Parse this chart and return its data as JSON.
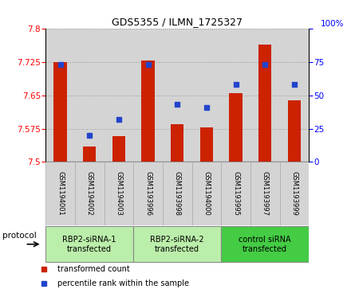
{
  "title": "GDS5355 / ILMN_1725327",
  "samples": [
    "GSM1194001",
    "GSM1194002",
    "GSM1194003",
    "GSM1193996",
    "GSM1193998",
    "GSM1194000",
    "GSM1193995",
    "GSM1193997",
    "GSM1193999"
  ],
  "bar_values": [
    7.725,
    7.535,
    7.558,
    7.728,
    7.585,
    7.578,
    7.655,
    7.765,
    7.638
  ],
  "dot_values": [
    73,
    20,
    32,
    73,
    43,
    41,
    58,
    73,
    58
  ],
  "ylim_left": [
    7.5,
    7.8
  ],
  "ylim_right": [
    0,
    100
  ],
  "yticks_left": [
    7.5,
    7.575,
    7.65,
    7.725,
    7.8
  ],
  "yticks_right": [
    0,
    25,
    50,
    75,
    100
  ],
  "bar_color": "#cc2200",
  "dot_color": "#2244cc",
  "bg_white": "#ffffff",
  "bg_grey": "#d4d4d4",
  "groups": [
    {
      "label": "RBP2-siRNA-1\ntransfected",
      "start": 0,
      "end": 2,
      "color": "#bbeeaa"
    },
    {
      "label": "RBP2-siRNA-2\ntransfected",
      "start": 3,
      "end": 5,
      "color": "#bbeeaa"
    },
    {
      "label": "control siRNA\ntransfected",
      "start": 6,
      "end": 8,
      "color": "#44cc44"
    }
  ],
  "legend_items": [
    {
      "label": "transformed count",
      "color": "#cc2200"
    },
    {
      "label": "percentile rank within the sample",
      "color": "#2244cc"
    }
  ],
  "protocol_label": "protocol",
  "grid_color": "#999999",
  "title_fontsize": 9,
  "tick_fontsize": 7.5,
  "label_fontsize": 7.5
}
